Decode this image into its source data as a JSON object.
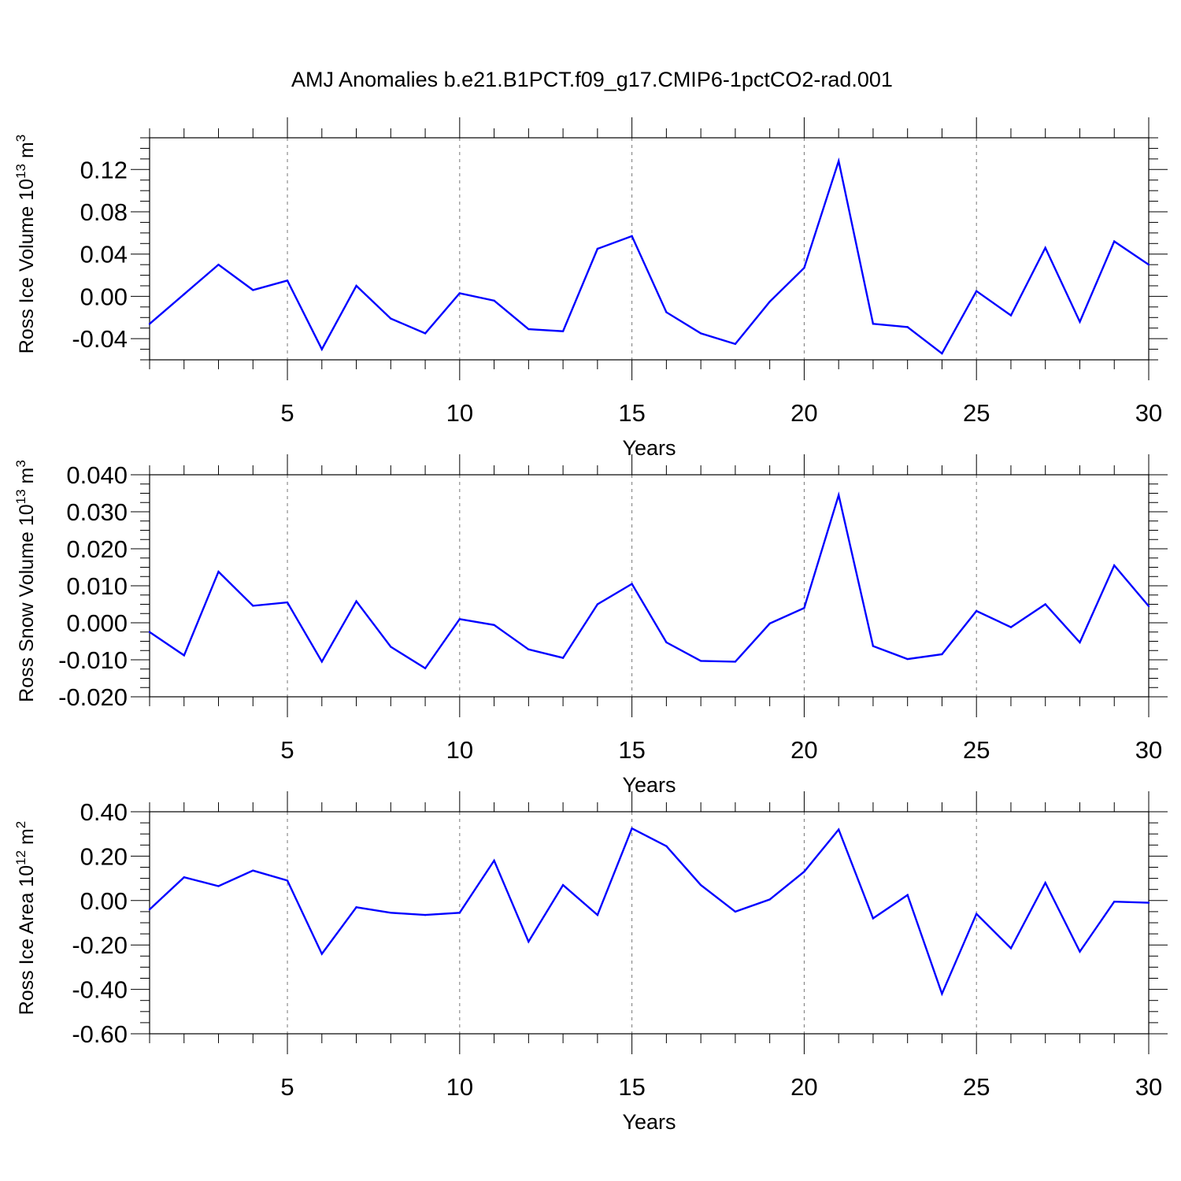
{
  "title": "AMJ Anomalies b.e21.B1PCT.f09_g17.CMIP6-1pctCO2-rad.001",
  "colors": {
    "line": "#0000ff",
    "axis": "#000000",
    "grid": "#777777",
    "background": "#ffffff"
  },
  "chart_data": [
    {
      "type": "line",
      "ylabel_main": "Ross Ice Volume 10",
      "ylabel_exp": "13",
      "ylabel_unit": " m",
      "ylabel_unit_exp": "3",
      "xlabel": "Years",
      "xlim": [
        1,
        30
      ],
      "ylim": [
        -0.06,
        0.15
      ],
      "xticks": [
        5,
        10,
        15,
        20,
        25,
        30
      ],
      "yticks": [
        -0.04,
        0.0,
        0.04,
        0.08,
        0.12
      ],
      "ytick_labels": [
        "-0.04",
        "0.00",
        "0.04",
        "0.08",
        "0.12"
      ],
      "y_minor_step": 0.01,
      "grid": "vertical dashed at major x ticks",
      "x": [
        1,
        2,
        3,
        4,
        5,
        6,
        7,
        8,
        9,
        10,
        11,
        12,
        13,
        14,
        15,
        16,
        17,
        18,
        19,
        20,
        21,
        22,
        23,
        24,
        25,
        26,
        27,
        28,
        29,
        30
      ],
      "series": [
        {
          "values": [
            -0.026,
            0.002,
            0.03,
            0.006,
            0.015,
            -0.05,
            0.01,
            -0.021,
            -0.035,
            0.003,
            -0.004,
            -0.031,
            -0.033,
            0.045,
            0.057,
            -0.015,
            -0.035,
            -0.045,
            -0.005,
            0.027,
            0.128,
            -0.026,
            -0.029,
            -0.054,
            0.005,
            -0.018,
            0.046,
            -0.024,
            0.052,
            0.03
          ]
        }
      ]
    },
    {
      "type": "line",
      "ylabel_main": "Ross Snow Volume 10",
      "ylabel_exp": "13",
      "ylabel_unit": " m",
      "ylabel_unit_exp": "3",
      "xlabel": "Years",
      "xlim": [
        1,
        30
      ],
      "ylim": [
        -0.02,
        0.04
      ],
      "xticks": [
        5,
        10,
        15,
        20,
        25,
        30
      ],
      "yticks": [
        -0.02,
        -0.01,
        0.0,
        0.01,
        0.02,
        0.03,
        0.04
      ],
      "ytick_labels": [
        "-0.020",
        "-0.010",
        "0.000",
        "0.010",
        "0.020",
        "0.030",
        "0.040"
      ],
      "y_minor_step": 0.0025,
      "grid": "vertical dashed at major x ticks",
      "x": [
        1,
        2,
        3,
        4,
        5,
        6,
        7,
        8,
        9,
        10,
        11,
        12,
        13,
        14,
        15,
        16,
        17,
        18,
        19,
        20,
        21,
        22,
        23,
        24,
        25,
        26,
        27,
        28,
        29,
        30
      ],
      "series": [
        {
          "values": [
            -0.0025,
            -0.0088,
            0.0138,
            0.0046,
            0.0055,
            -0.0105,
            0.0058,
            -0.0065,
            -0.0123,
            0.001,
            -0.0006,
            -0.0072,
            -0.0095,
            0.005,
            0.0105,
            -0.0053,
            -0.0103,
            -0.0105,
            -0.0002,
            0.004,
            0.0345,
            -0.0063,
            -0.0098,
            -0.0085,
            0.0032,
            -0.0012,
            0.005,
            -0.0053,
            0.0155,
            0.0045
          ]
        }
      ]
    },
    {
      "type": "line",
      "ylabel_main": "Ross Ice Area 10",
      "ylabel_exp": "12",
      "ylabel_unit": " m",
      "ylabel_unit_exp": "2",
      "xlabel": "Years",
      "xlim": [
        1,
        30
      ],
      "ylim": [
        -0.6,
        0.4
      ],
      "xticks": [
        5,
        10,
        15,
        20,
        25,
        30
      ],
      "yticks": [
        -0.6,
        -0.4,
        -0.2,
        0.0,
        0.2,
        0.4
      ],
      "ytick_labels": [
        "-0.60",
        "-0.40",
        "-0.20",
        "0.00",
        "0.20",
        "0.40"
      ],
      "y_minor_step": 0.05,
      "grid": "vertical dashed at major x ticks",
      "x": [
        1,
        2,
        3,
        4,
        5,
        6,
        7,
        8,
        9,
        10,
        11,
        12,
        13,
        14,
        15,
        16,
        17,
        18,
        19,
        20,
        21,
        22,
        23,
        24,
        25,
        26,
        27,
        28,
        29,
        30
      ],
      "series": [
        {
          "values": [
            -0.04,
            0.105,
            0.065,
            0.135,
            0.09,
            -0.24,
            -0.03,
            -0.055,
            -0.065,
            -0.055,
            0.18,
            -0.185,
            0.07,
            -0.065,
            0.325,
            0.245,
            0.07,
            -0.05,
            0.005,
            0.13,
            0.32,
            -0.08,
            0.025,
            -0.42,
            -0.06,
            -0.215,
            0.08,
            -0.23,
            -0.005,
            -0.01
          ]
        }
      ]
    }
  ]
}
